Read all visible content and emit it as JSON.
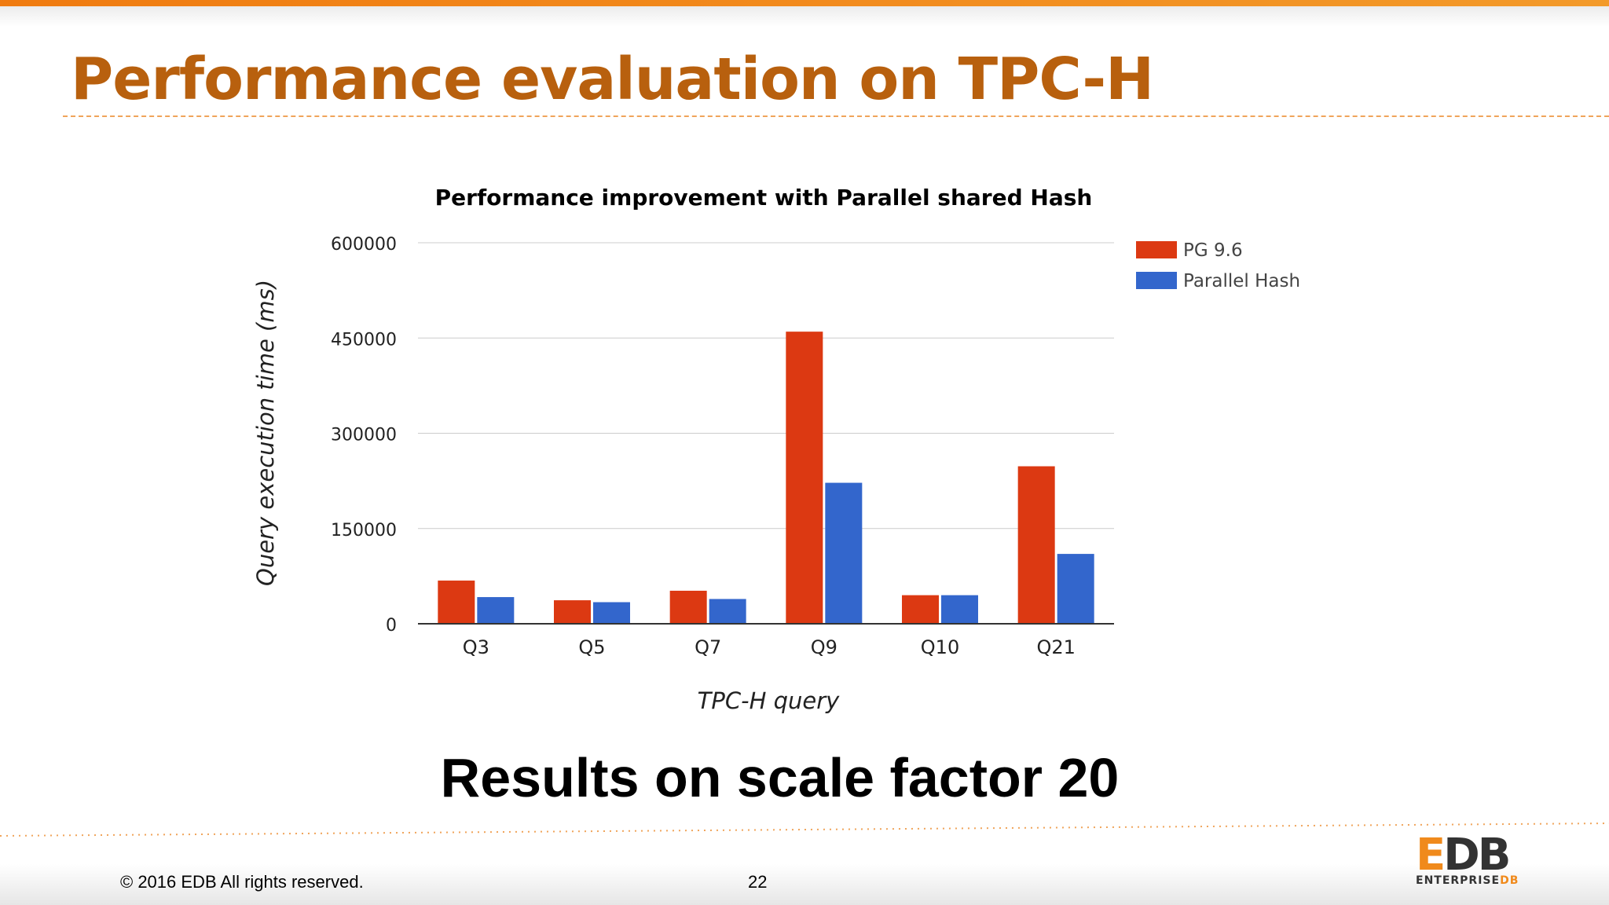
{
  "slide": {
    "title": "Performance evaluation on TPC-H",
    "subtitle": "Results on scale factor 20",
    "footer_copyright": "© 2016 EDB All rights reserved.",
    "page_number": "22"
  },
  "logo": {
    "mark_e": "E",
    "mark_db": "DB",
    "text_enterprise": "ENTERPRISE",
    "text_db": "DB"
  },
  "chart_data": {
    "type": "bar",
    "title": "Performance improvement with Parallel shared Hash",
    "xlabel": "TPC-H query",
    "ylabel": "Query execution time (ms)",
    "categories": [
      "Q3",
      "Q5",
      "Q7",
      "Q9",
      "Q10",
      "Q21"
    ],
    "series": [
      {
        "name": "PG 9.6",
        "color": "#dc3912",
        "values": [
          68000,
          37000,
          52000,
          460000,
          45000,
          248000
        ]
      },
      {
        "name": "Parallel Hash",
        "color": "#3366cc",
        "values": [
          42000,
          34000,
          39000,
          222000,
          45000,
          110000
        ]
      }
    ],
    "ylim": [
      0,
      600000
    ],
    "yticks": [
      0,
      150000,
      300000,
      450000,
      600000
    ],
    "grid": true,
    "legend_position": "right"
  }
}
